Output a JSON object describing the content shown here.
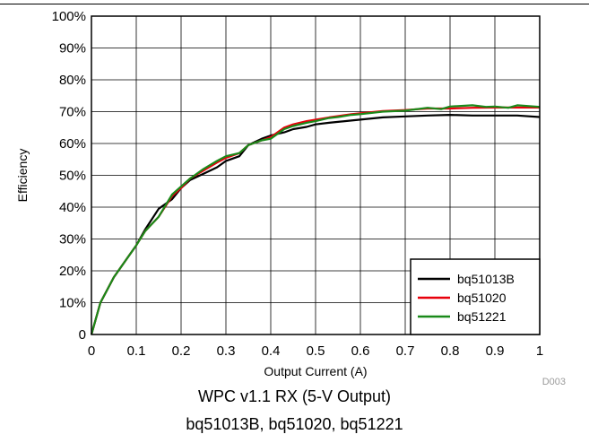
{
  "figure_id": "D003",
  "caption": {
    "line1": "WPC v1.1 RX (5-V Output)",
    "line2": "bq51013B, bq51020, bq51221"
  },
  "chart_data": {
    "type": "line",
    "title": "",
    "xlabel": "Output Current (A)",
    "ylabel": "Efficiency",
    "xlim": [
      0,
      1
    ],
    "ylim": [
      0,
      100
    ],
    "x_ticks": [
      0,
      0.1,
      0.2,
      0.3,
      0.4,
      0.5,
      0.6,
      0.7,
      0.8,
      0.9,
      1
    ],
    "x_tick_labels": [
      "0",
      "0.1",
      "0.2",
      "0.3",
      "0.4",
      "0.5",
      "0.6",
      "0.7",
      "0.8",
      "0.9",
      "1"
    ],
    "y_ticks": [
      0,
      10,
      20,
      30,
      40,
      50,
      60,
      70,
      80,
      90,
      100
    ],
    "y_tick_labels": [
      "0",
      "10%",
      "20%",
      "30%",
      "40%",
      "50%",
      "60%",
      "70%",
      "80%",
      "90%",
      "100%"
    ],
    "grid": true,
    "legend_position": "bottom-right",
    "series": [
      {
        "name": "bq51013B",
        "color": "#000000",
        "x": [
          0,
          0.02,
          0.05,
          0.08,
          0.1,
          0.12,
          0.15,
          0.18,
          0.2,
          0.22,
          0.25,
          0.28,
          0.3,
          0.33,
          0.35,
          0.38,
          0.4,
          0.43,
          0.45,
          0.48,
          0.5,
          0.53,
          0.55,
          0.58,
          0.6,
          0.65,
          0.7,
          0.75,
          0.8,
          0.85,
          0.9,
          0.95,
          1.0
        ],
        "y": [
          0,
          10,
          18,
          24,
          28,
          33,
          39.5,
          42.5,
          46,
          48.5,
          50.5,
          52.5,
          54.5,
          56,
          59.5,
          61.5,
          62.5,
          63.5,
          64.5,
          65.2,
          66,
          66.5,
          66.8,
          67.2,
          67.5,
          68.2,
          68.5,
          68.8,
          69,
          68.8,
          68.8,
          68.8,
          68.3
        ]
      },
      {
        "name": "bq51020",
        "color": "#e8000b",
        "x": [
          0,
          0.02,
          0.05,
          0.08,
          0.1,
          0.12,
          0.15,
          0.18,
          0.2,
          0.22,
          0.25,
          0.28,
          0.3,
          0.33,
          0.35,
          0.38,
          0.4,
          0.43,
          0.45,
          0.48,
          0.5,
          0.53,
          0.55,
          0.58,
          0.6,
          0.65,
          0.7,
          0.75,
          0.8,
          0.85,
          0.9,
          0.95,
          1.0
        ],
        "y": [
          0,
          10,
          18,
          24,
          28,
          32.5,
          37,
          43.5,
          46,
          49,
          51.5,
          54,
          55.5,
          57,
          59.5,
          61,
          62,
          65,
          66,
          67,
          67.5,
          68.2,
          68.6,
          69.2,
          69.5,
          70.2,
          70.5,
          71,
          71,
          71.2,
          71.3,
          71.3,
          71.3
        ]
      },
      {
        "name": "bq51221",
        "color": "#1a8a1a",
        "x": [
          0,
          0.02,
          0.05,
          0.08,
          0.1,
          0.12,
          0.15,
          0.18,
          0.2,
          0.22,
          0.25,
          0.28,
          0.3,
          0.33,
          0.35,
          0.38,
          0.4,
          0.43,
          0.45,
          0.48,
          0.5,
          0.53,
          0.55,
          0.58,
          0.6,
          0.65,
          0.7,
          0.75,
          0.78,
          0.8,
          0.85,
          0.88,
          0.9,
          0.93,
          0.95,
          1.0
        ],
        "y": [
          0,
          10,
          18,
          24,
          28,
          32.5,
          37,
          44,
          46.5,
          49,
          52,
          54.5,
          56,
          57,
          59.5,
          61,
          61.5,
          64.5,
          65.5,
          66.5,
          67,
          68,
          68.3,
          69,
          69.2,
          70,
          70.3,
          71.2,
          70.8,
          71.6,
          72,
          71.5,
          71.6,
          71.2,
          72,
          71.5
        ]
      }
    ]
  }
}
